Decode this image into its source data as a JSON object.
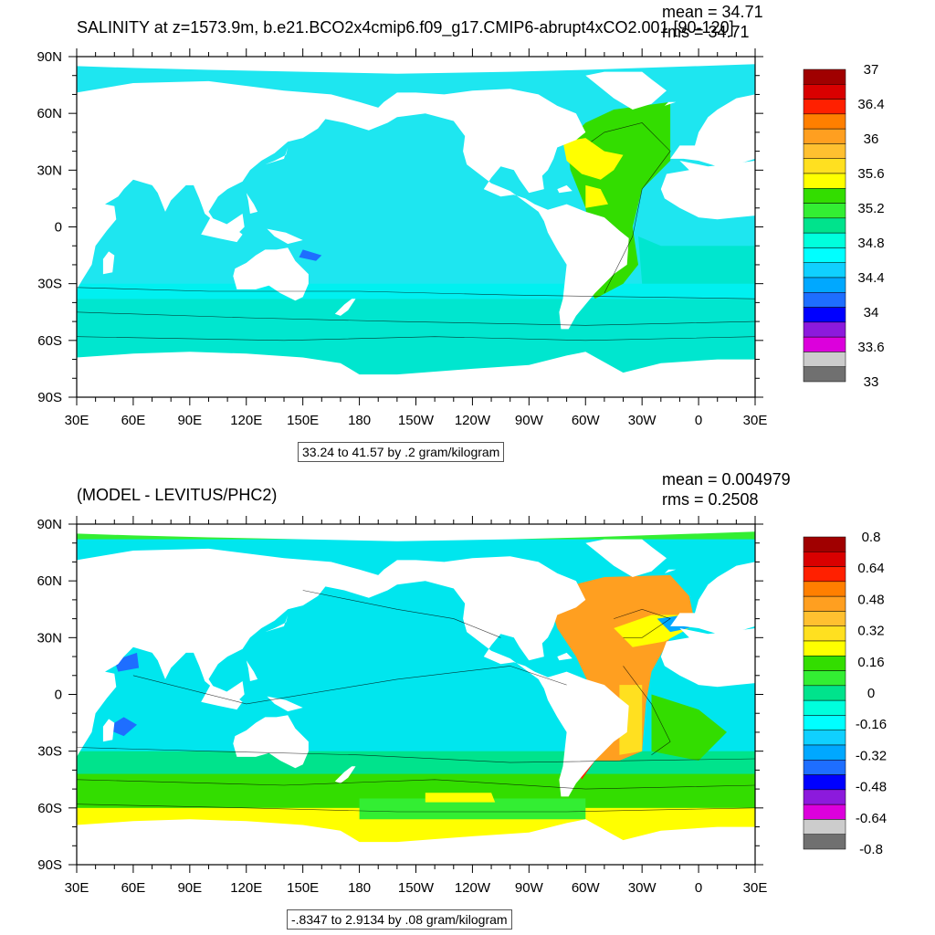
{
  "panels": [
    {
      "title": "SALINITY at z=1573.9m, b.e21.BCO2x4cmip6.f09_g17.CMIP6-abrupt4xCO2.001 [90-120]",
      "mean_label": "mean = 34.71",
      "rms_label": "rms = 34.71",
      "info_label": "33.24 to 41.57 by .2 gram/kilogram"
    },
    {
      "title": "(MODEL - LEVITUS/PHC2)",
      "mean_label": "mean = 0.004979",
      "rms_label": "rms = 0.2508",
      "info_label": "-.8347 to 2.9134 by .08 gram/kilogram"
    }
  ],
  "chart_data": [
    {
      "type": "heatmap",
      "title": "SALINITY at z=1573.9m, b.e21.BCO2x4cmip6.f09_g17.CMIP6-abrupt4xCO2.001 [90-120]",
      "xlabel": "",
      "ylabel": "",
      "xlim": [
        30,
        390
      ],
      "ylim": [
        -90,
        90
      ],
      "x_ticks": [
        "30E",
        "60E",
        "90E",
        "120E",
        "150E",
        "180",
        "150W",
        "120W",
        "90W",
        "60W",
        "30W",
        "0",
        "30E"
      ],
      "y_ticks": [
        "90N",
        "60N",
        "30N",
        "0",
        "30S",
        "60S",
        "90S"
      ],
      "units": "gram/kilogram",
      "colorbar_labels": [
        "37",
        "36.4",
        "36",
        "35.6",
        "35.2",
        "34.8",
        "34.4",
        "34",
        "33.6",
        "33"
      ],
      "colorbar_colors": [
        "#a00000",
        "#d90000",
        "#ff2000",
        "#ff7f00",
        "#ff9f20",
        "#ffc030",
        "#ffe020",
        "#ffff00",
        "#33dd00",
        "#33ee33",
        "#00e38c",
        "#00ffdd",
        "#00ffff",
        "#10d0ff",
        "#00a8ff",
        "#1e6eff",
        "#0000ff",
        "#8c1adc",
        "#dc00dc",
        "#cccccc",
        "#707070"
      ],
      "ocean_color": "#1ee6f0",
      "mean": 34.71,
      "rms": 34.71
    },
    {
      "type": "heatmap",
      "title": "(MODEL - LEVITUS/PHC2)",
      "xlabel": "",
      "ylabel": "",
      "xlim": [
        30,
        390
      ],
      "ylim": [
        -90,
        90
      ],
      "x_ticks": [
        "30E",
        "60E",
        "90E",
        "120E",
        "150E",
        "180",
        "150W",
        "120W",
        "90W",
        "60W",
        "30W",
        "0",
        "30E"
      ],
      "y_ticks": [
        "90N",
        "60N",
        "30N",
        "0",
        "30S",
        "60S",
        "90S"
      ],
      "units": "gram/kilogram",
      "colorbar_labels": [
        "0.8",
        "0.64",
        "0.48",
        "0.32",
        "0.16",
        "0",
        "-0.16",
        "-0.32",
        "-0.48",
        "-0.64",
        "-0.8"
      ],
      "colorbar_colors": [
        "#a00000",
        "#d90000",
        "#ff2000",
        "#ff7f00",
        "#ff9f20",
        "#ffc030",
        "#ffe020",
        "#ffff00",
        "#33dd00",
        "#33ee33",
        "#00e38c",
        "#00ffdd",
        "#00ffff",
        "#10d0ff",
        "#00a8ff",
        "#1e6eff",
        "#0000ff",
        "#8c1adc",
        "#dc00dc",
        "#cccccc",
        "#707070"
      ],
      "ocean_color": "#00e6ee",
      "mean": 0.004979,
      "rms": 0.2508
    }
  ]
}
